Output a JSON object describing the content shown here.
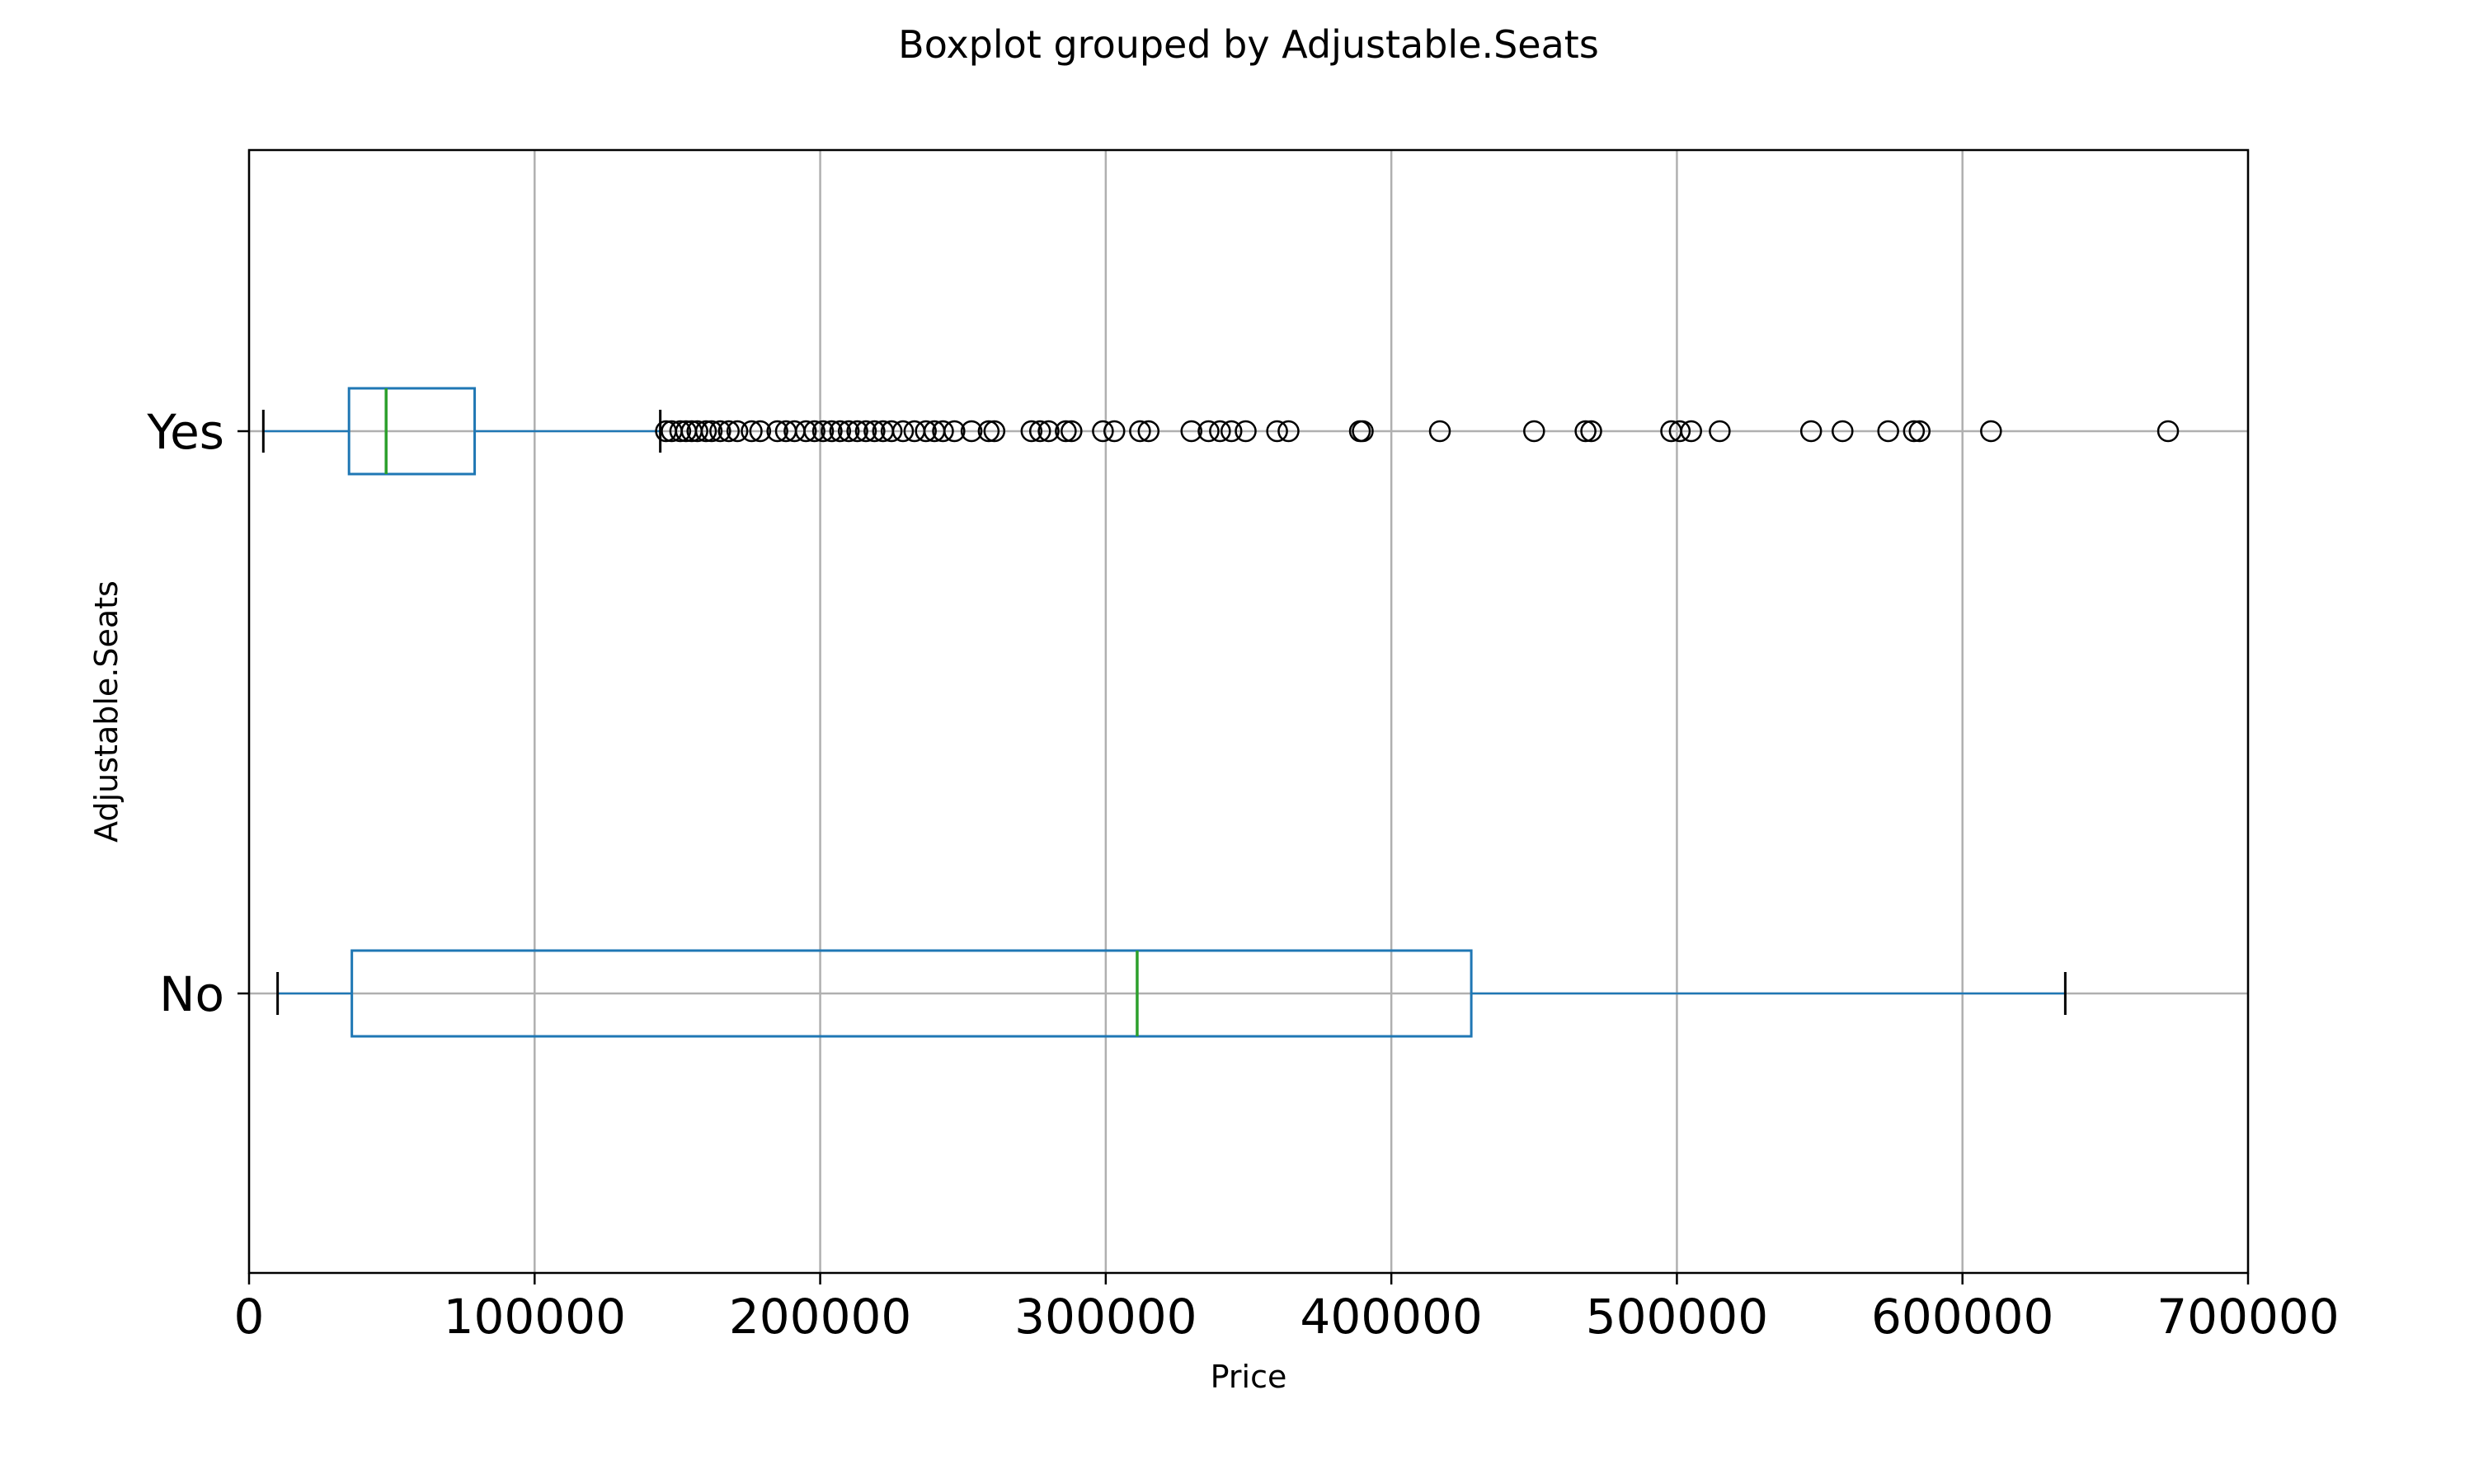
{
  "chart_data": {
    "type": "boxplot",
    "orientation": "horizontal",
    "title": "Boxplot grouped by Adjustable.Seats",
    "xlabel": "Price",
    "ylabel": "Adjustable.Seats",
    "xlim": [
      0,
      700000
    ],
    "x_ticks": [
      0,
      100000,
      200000,
      300000,
      400000,
      500000,
      600000,
      700000
    ],
    "grid": true,
    "colors": {
      "box": "#1f77b4",
      "median": "#2ca02c",
      "whisker": "#1f77b4",
      "cap": "#000000",
      "flier": "#000000",
      "grid": "#b0b0b0"
    },
    "categories": [
      "No",
      "Yes"
    ],
    "series": [
      {
        "name": "No",
        "whisker_low": 10000,
        "q1": 36000,
        "median": 311000,
        "q3": 428000,
        "whisker_high": 636000,
        "fliers": []
      },
      {
        "name": "Yes",
        "whisker_low": 5000,
        "q1": 35000,
        "median": 48000,
        "q3": 79000,
        "whisker_high": 144000,
        "fliers": [
          146000,
          148000,
          151000,
          153000,
          155000,
          157000,
          160000,
          162000,
          165000,
          168000,
          171000,
          176000,
          179000,
          185000,
          188000,
          191000,
          195000,
          198000,
          201000,
          204000,
          207000,
          210000,
          213000,
          216000,
          219000,
          222000,
          225000,
          229000,
          233000,
          237000,
          240000,
          243000,
          247000,
          253000,
          259000,
          261000,
          274000,
          277000,
          280000,
          286000,
          288000,
          299000,
          303000,
          312000,
          315000,
          330000,
          336000,
          340000,
          344000,
          349000,
          360000,
          364000,
          389000,
          390000,
          417000,
          450000,
          468000,
          470000,
          498000,
          501000,
          505000,
          515000,
          547000,
          558000,
          574000,
          583000,
          585000,
          610000,
          672000
        ]
      }
    ]
  }
}
